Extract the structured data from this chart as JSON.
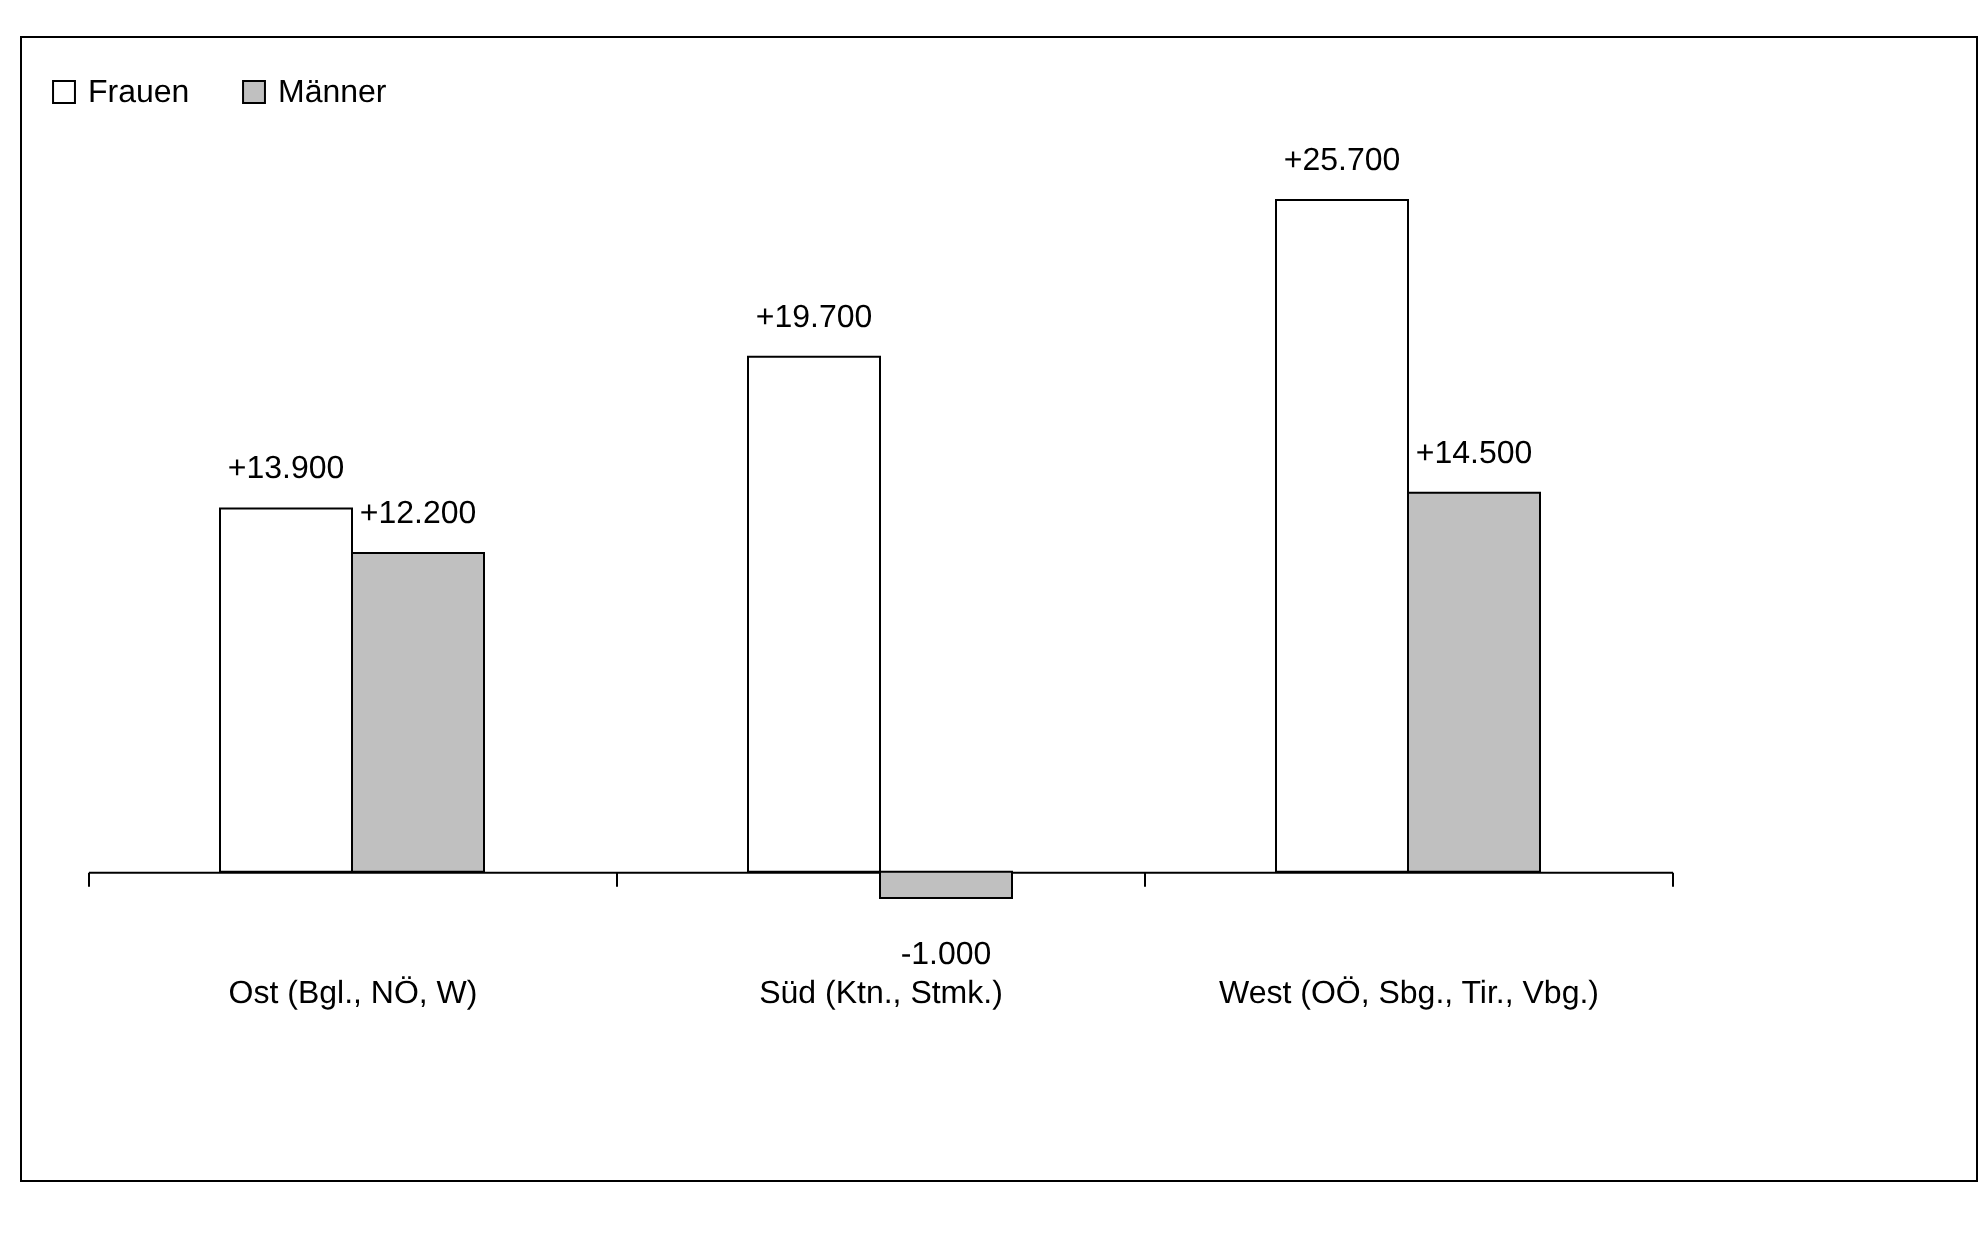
{
  "chart_data": {
    "type": "bar",
    "categories": [
      "Ost (Bgl., NÖ, W)",
      "Süd (Ktn., Stmk.)",
      "West (OÖ, Sbg., Tir., Vbg.)"
    ],
    "series": [
      {
        "name": "Frauen",
        "color": "#ffffff",
        "values": [
          13900,
          19700,
          25700
        ],
        "value_labels": [
          "+13.900",
          "+19.700",
          "+25.700"
        ]
      },
      {
        "name": "Männer",
        "color": "#c0c0c0",
        "values": [
          12200,
          -1000,
          14500
        ],
        "value_labels": [
          "+12.200",
          "-1.000",
          "+14.500"
        ]
      }
    ],
    "legend": "top left"
  }
}
